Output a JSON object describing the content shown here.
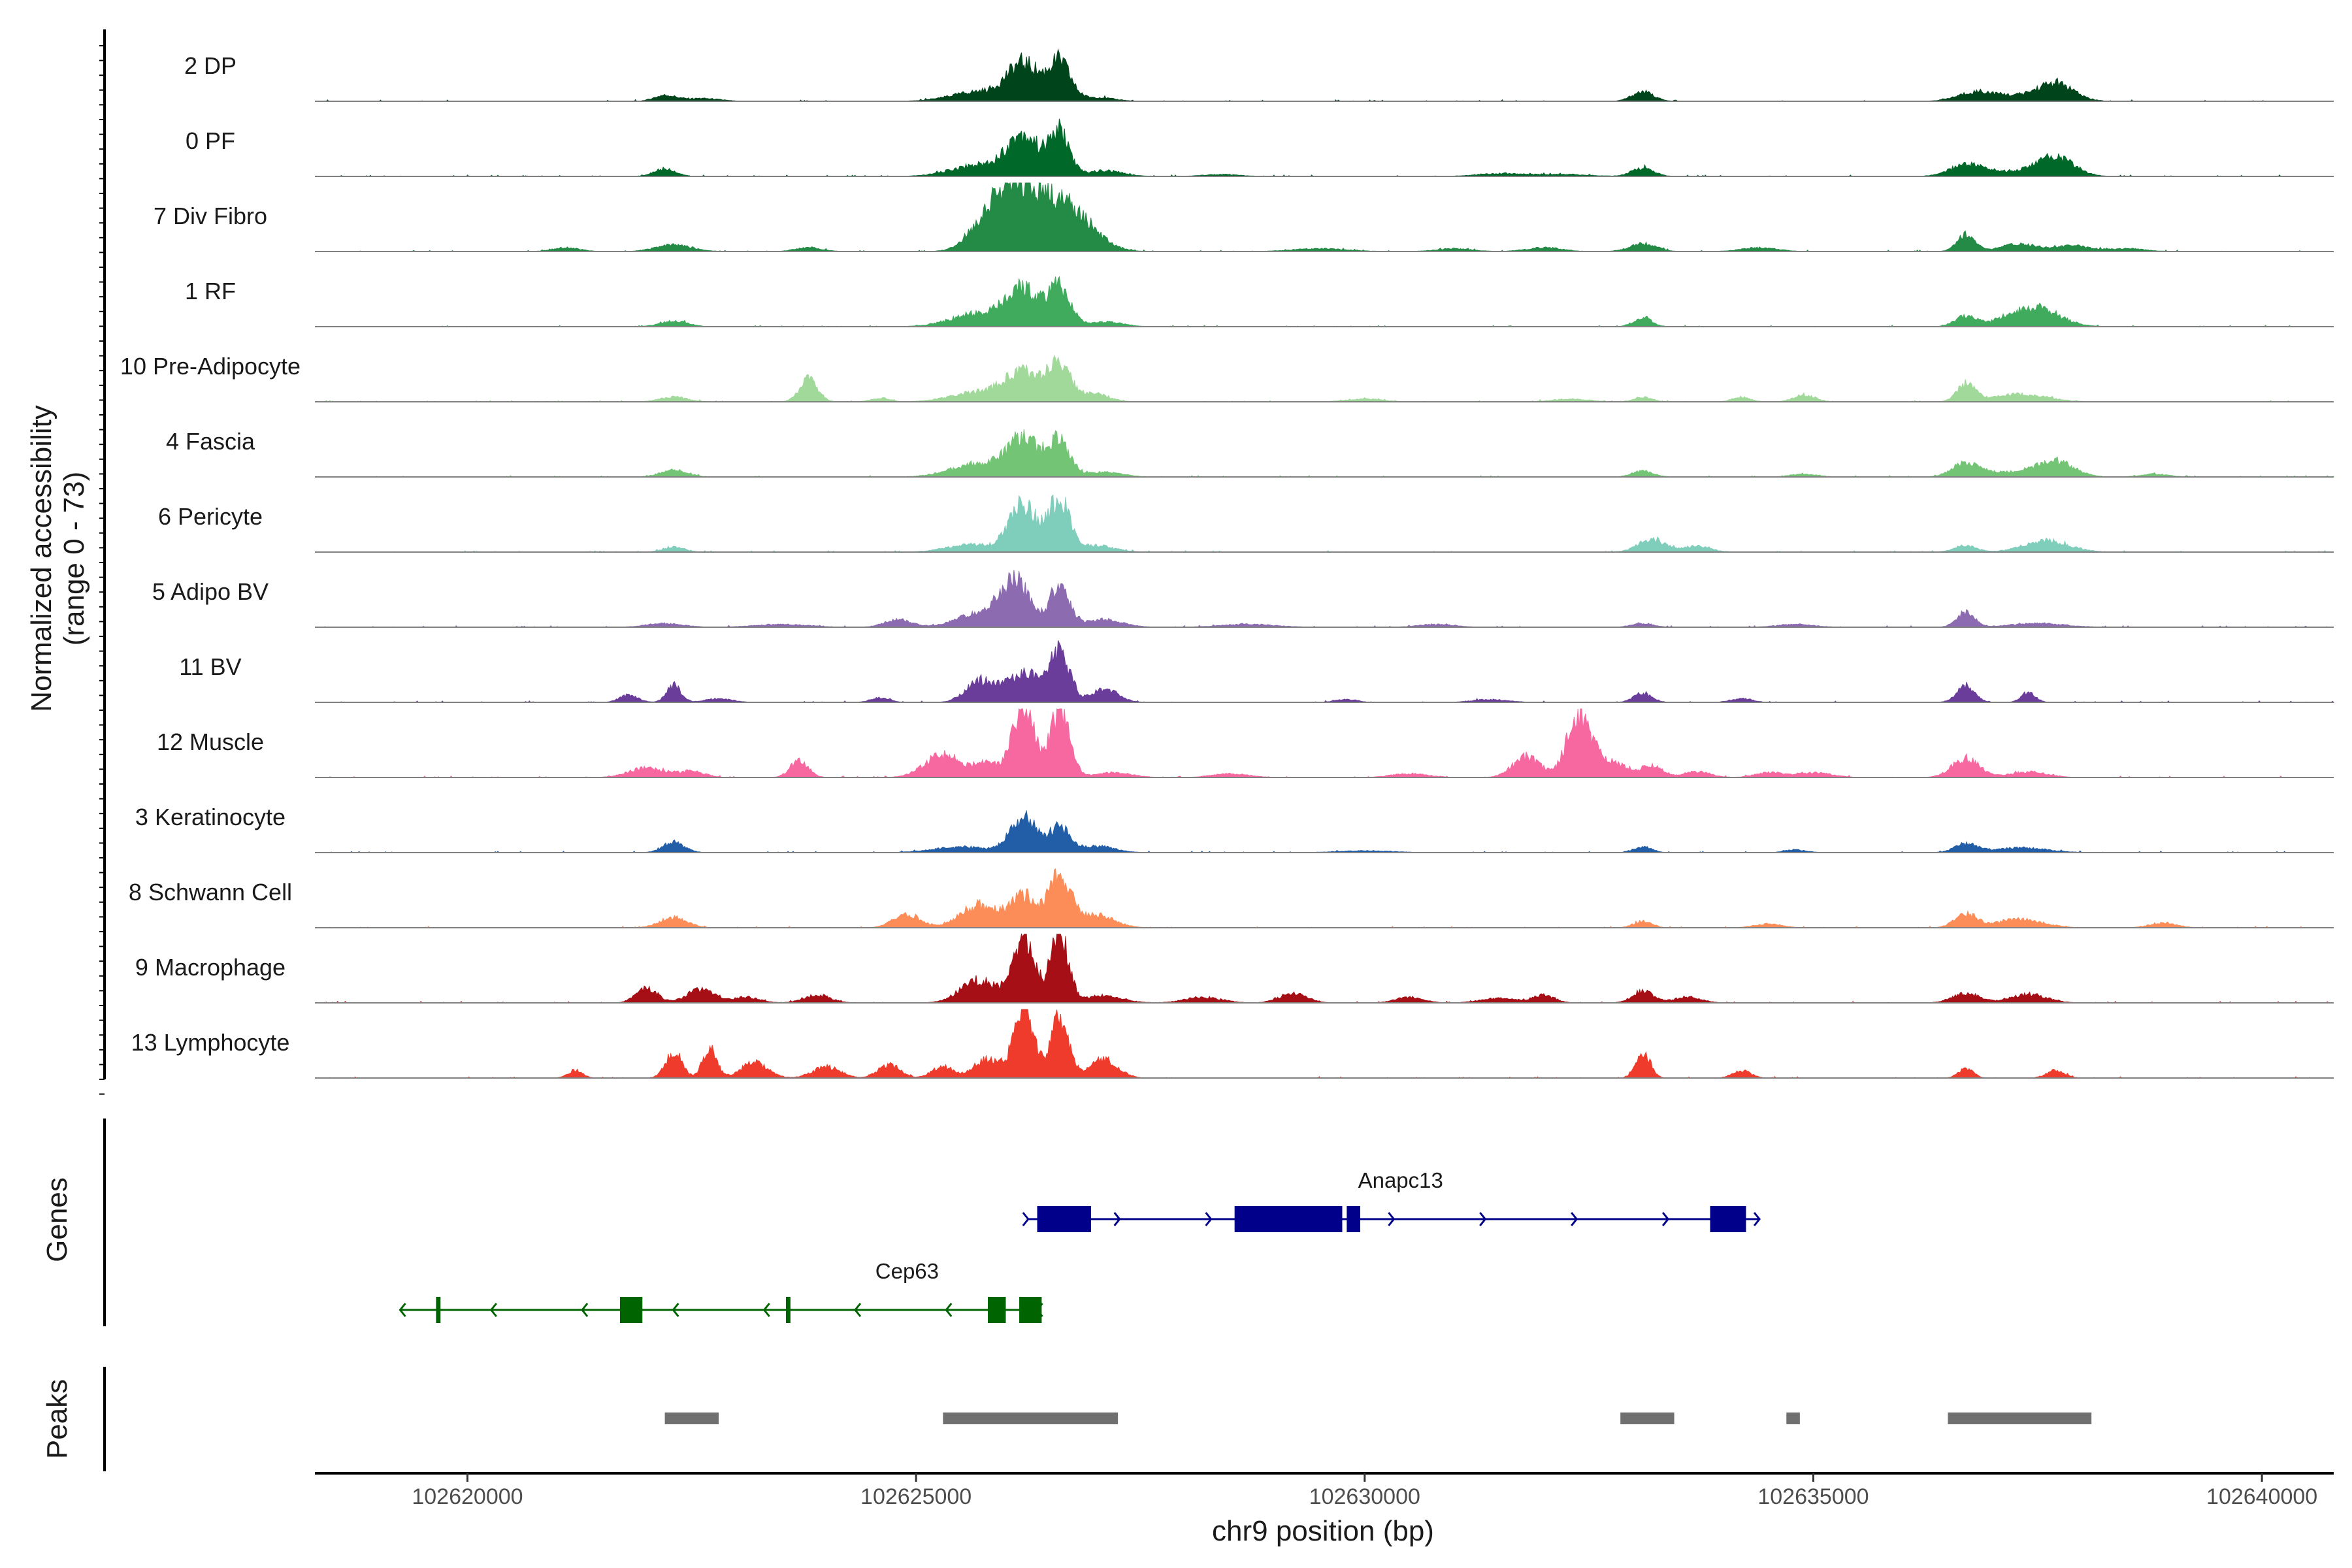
{
  "chart_data": {
    "type": "area",
    "title": "",
    "xlabel": "chr9 position (bp)",
    "ylabel": "Normalized accessibility",
    "ylabel_sub": "(range 0 - 73)",
    "xlim": [
      102618300,
      102640800
    ],
    "ylim": [
      0,
      73
    ],
    "x_ticks": [
      102620000,
      102625000,
      102630000,
      102635000,
      102640000
    ],
    "x_tick_labels": [
      "102620000",
      "102625000",
      "102630000",
      "102635000",
      "102640000"
    ],
    "series": [
      {
        "name": "2 DP",
        "color": "#00441b",
        "peaks": [
          [
            102622200,
            6,
            120
          ],
          [
            102622600,
            3,
            200
          ],
          [
            102626200,
            38,
            180
          ],
          [
            102626600,
            40,
            120
          ],
          [
            102625700,
            10,
            300
          ],
          [
            102627000,
            4,
            200
          ],
          [
            102633100,
            10,
            120
          ],
          [
            102636800,
            8,
            200
          ],
          [
            102637700,
            18,
            200
          ],
          [
            102637200,
            5,
            300
          ]
        ]
      },
      {
        "name": "0 PF",
        "color": "#00692a",
        "peaks": [
          [
            102622200,
            8,
            120
          ],
          [
            102626200,
            42,
            180
          ],
          [
            102626600,
            45,
            110
          ],
          [
            102625700,
            12,
            300
          ],
          [
            102627100,
            6,
            200
          ],
          [
            102628400,
            2,
            200
          ],
          [
            102631500,
            3,
            250
          ],
          [
            102633100,
            9,
            120
          ],
          [
            102636700,
            12,
            180
          ],
          [
            102637700,
            20,
            200
          ],
          [
            102637200,
            5,
            300
          ],
          [
            102632200,
            2,
            300
          ]
        ]
      },
      {
        "name": "7 Div Fibro",
        "color": "#238b45",
        "peaks": [
          [
            102622300,
            7,
            200
          ],
          [
            102621100,
            4,
            150
          ],
          [
            102623800,
            4,
            150
          ],
          [
            102626200,
            70,
            250
          ],
          [
            102625800,
            30,
            200
          ],
          [
            102626700,
            40,
            200
          ],
          [
            102627000,
            10,
            200
          ],
          [
            102629500,
            3,
            300
          ],
          [
            102631000,
            3,
            200
          ],
          [
            102632000,
            4,
            200
          ],
          [
            102633100,
            8,
            150
          ],
          [
            102634400,
            4,
            200
          ],
          [
            102636700,
            18,
            100
          ],
          [
            102637300,
            8,
            200
          ],
          [
            102637900,
            6,
            200
          ],
          [
            102638500,
            3,
            200
          ]
        ]
      },
      {
        "name": "1 RF",
        "color": "#41ab5d",
        "peaks": [
          [
            102622300,
            6,
            150
          ],
          [
            102625700,
            14,
            300
          ],
          [
            102626200,
            38,
            180
          ],
          [
            102626600,
            40,
            120
          ],
          [
            102627100,
            5,
            200
          ],
          [
            102633100,
            10,
            100
          ],
          [
            102636700,
            11,
            120
          ],
          [
            102637500,
            18,
            250
          ],
          [
            102637200,
            6,
            200
          ]
        ]
      },
      {
        "name": "10 Pre-Adipocyte",
        "color": "#a1d99b",
        "peaks": [
          [
            102622300,
            5,
            150
          ],
          [
            102623800,
            24,
            100
          ],
          [
            102624600,
            4,
            100
          ],
          [
            102625700,
            10,
            300
          ],
          [
            102626200,
            30,
            200
          ],
          [
            102626600,
            36,
            130
          ],
          [
            102627000,
            8,
            150
          ],
          [
            102630000,
            3,
            200
          ],
          [
            102632300,
            3,
            200
          ],
          [
            102633100,
            5,
            100
          ],
          [
            102634200,
            5,
            100
          ],
          [
            102634900,
            7,
            120
          ],
          [
            102636700,
            18,
            100
          ],
          [
            102637300,
            8,
            300
          ]
        ]
      },
      {
        "name": "4 Fascia",
        "color": "#74c476",
        "peaks": [
          [
            102622300,
            7,
            150
          ],
          [
            102625700,
            14,
            300
          ],
          [
            102626200,
            38,
            180
          ],
          [
            102626600,
            36,
            120
          ],
          [
            102627100,
            5,
            200
          ],
          [
            102633100,
            6,
            120
          ],
          [
            102634900,
            3,
            150
          ],
          [
            102636700,
            14,
            150
          ],
          [
            102637700,
            16,
            200
          ],
          [
            102637200,
            5,
            300
          ],
          [
            102638800,
            3,
            150
          ]
        ]
      },
      {
        "name": "6 Pericyte",
        "color": "#7fcdbb",
        "peaks": [
          [
            102622300,
            5,
            120
          ],
          [
            102625600,
            8,
            250
          ],
          [
            102626200,
            50,
            160
          ],
          [
            102626600,
            54,
            110
          ],
          [
            102627000,
            7,
            200
          ],
          [
            102633200,
            14,
            150
          ],
          [
            102633700,
            6,
            150
          ],
          [
            102636700,
            7,
            120
          ],
          [
            102637600,
            12,
            250
          ]
        ]
      },
      {
        "name": "5 Adipo BV",
        "color": "#8c6bb1",
        "peaks": [
          [
            102622200,
            4,
            200
          ],
          [
            102623500,
            3,
            300
          ],
          [
            102624800,
            8,
            150
          ],
          [
            102625700,
            14,
            250
          ],
          [
            102626100,
            48,
            160
          ],
          [
            102626600,
            44,
            110
          ],
          [
            102627100,
            8,
            200
          ],
          [
            102628700,
            3,
            300
          ],
          [
            102630800,
            3,
            200
          ],
          [
            102633100,
            4,
            120
          ],
          [
            102634800,
            3,
            200
          ],
          [
            102636700,
            16,
            100
          ],
          [
            102637500,
            4,
            300
          ]
        ]
      },
      {
        "name": "11 BV",
        "color": "#6a3d9a",
        "peaks": [
          [
            102621800,
            8,
            100
          ],
          [
            102622300,
            18,
            80
          ],
          [
            102622800,
            4,
            150
          ],
          [
            102624600,
            5,
            100
          ],
          [
            102625700,
            22,
            150
          ],
          [
            102626200,
            32,
            200
          ],
          [
            102626600,
            52,
            110
          ],
          [
            102627100,
            14,
            150
          ],
          [
            102629800,
            3,
            120
          ],
          [
            102631400,
            3,
            200
          ],
          [
            102633100,
            10,
            100
          ],
          [
            102634200,
            4,
            120
          ],
          [
            102636700,
            18,
            100
          ],
          [
            102637400,
            10,
            80
          ]
        ]
      },
      {
        "name": "12 Muscle",
        "color": "#f768a1",
        "peaks": [
          [
            102622000,
            10,
            200
          ],
          [
            102622500,
            6,
            150
          ],
          [
            102623700,
            18,
            100
          ],
          [
            102625300,
            24,
            200
          ],
          [
            102625800,
            14,
            150
          ],
          [
            102626200,
            75,
            120
          ],
          [
            102626600,
            70,
            110
          ],
          [
            102627200,
            5,
            200
          ],
          [
            102628500,
            4,
            200
          ],
          [
            102630500,
            4,
            200
          ],
          [
            102631800,
            22,
            150
          ],
          [
            102632400,
            68,
            140
          ],
          [
            102632800,
            14,
            150
          ],
          [
            102633200,
            12,
            120
          ],
          [
            102633700,
            6,
            150
          ],
          [
            102634500,
            5,
            150
          ],
          [
            102635000,
            5,
            200
          ],
          [
            102636700,
            20,
            150
          ],
          [
            102637400,
            6,
            200
          ]
        ]
      },
      {
        "name": "3 Keratinocyte",
        "color": "#225ea8",
        "peaks": [
          [
            102622300,
            11,
            120
          ],
          [
            102625500,
            6,
            300
          ],
          [
            102626200,
            36,
            150
          ],
          [
            102626600,
            26,
            110
          ],
          [
            102627000,
            7,
            200
          ],
          [
            102630000,
            2,
            300
          ],
          [
            102633100,
            6,
            100
          ],
          [
            102634800,
            3,
            120
          ],
          [
            102636700,
            9,
            120
          ],
          [
            102637300,
            5,
            300
          ]
        ]
      },
      {
        "name": "8 Schwann Cell",
        "color": "#fc8d59",
        "peaks": [
          [
            102622300,
            11,
            150
          ],
          [
            102624900,
            14,
            150
          ],
          [
            102625700,
            24,
            200
          ],
          [
            102626200,
            34,
            150
          ],
          [
            102626600,
            54,
            120
          ],
          [
            102627000,
            14,
            200
          ],
          [
            102633100,
            7,
            100
          ],
          [
            102634500,
            4,
            150
          ],
          [
            102636700,
            15,
            120
          ],
          [
            102637300,
            9,
            250
          ],
          [
            102638900,
            5,
            150
          ]
        ]
      },
      {
        "name": "9 Macrophage",
        "color": "#a50f15",
        "peaks": [
          [
            102622000,
            15,
            120
          ],
          [
            102622600,
            14,
            150
          ],
          [
            102623100,
            6,
            150
          ],
          [
            102623900,
            8,
            150
          ],
          [
            102625700,
            24,
            200
          ],
          [
            102626200,
            70,
            120
          ],
          [
            102626600,
            74,
            100
          ],
          [
            102627100,
            8,
            200
          ],
          [
            102628200,
            6,
            200
          ],
          [
            102629200,
            10,
            150
          ],
          [
            102630500,
            6,
            150
          ],
          [
            102631500,
            5,
            200
          ],
          [
            102632000,
            8,
            120
          ],
          [
            102633100,
            12,
            120
          ],
          [
            102633600,
            6,
            150
          ],
          [
            102636700,
            10,
            150
          ],
          [
            102637400,
            9,
            200
          ]
        ]
      },
      {
        "name": "13 Lymphocyte",
        "color": "#ef3b2c",
        "peaks": [
          [
            102621200,
            8,
            80
          ],
          [
            102622300,
            28,
            90
          ],
          [
            102622700,
            30,
            80
          ],
          [
            102623200,
            16,
            150
          ],
          [
            102624000,
            12,
            150
          ],
          [
            102624700,
            14,
            120
          ],
          [
            102625300,
            12,
            120
          ],
          [
            102625800,
            20,
            150
          ],
          [
            102626200,
            72,
            110
          ],
          [
            102626600,
            65,
            100
          ],
          [
            102627100,
            20,
            150
          ],
          [
            102633100,
            28,
            80
          ],
          [
            102634200,
            8,
            100
          ],
          [
            102636700,
            10,
            80
          ],
          [
            102637700,
            8,
            100
          ]
        ]
      }
    ],
    "genes": [
      {
        "name": "Anapc13",
        "strand": "+",
        "color": "#00008b",
        "row": 1,
        "start": 102626250,
        "end": 102634400,
        "exons": [
          [
            102626350,
            102626950,
            "utr"
          ],
          [
            102628550,
            102629750,
            "cds"
          ],
          [
            102629800,
            102629950,
            "cds"
          ],
          [
            102633850,
            102634250,
            "utr"
          ]
        ]
      },
      {
        "name": "Cep63",
        "strand": "-",
        "color": "#006400",
        "row": 2,
        "start": 102619250,
        "end": 102626350,
        "exons": [
          [
            102619650,
            102619700,
            "cds"
          ],
          [
            102621700,
            102621950,
            "cds"
          ],
          [
            102623550,
            102623600,
            "cds"
          ],
          [
            102625800,
            102626000,
            "cds"
          ],
          [
            102626150,
            102626400,
            "cds"
          ]
        ]
      }
    ],
    "peak_regions": [
      [
        102622200,
        102622800
      ],
      [
        102625300,
        102627250
      ],
      [
        102632850,
        102633450
      ],
      [
        102634700,
        102634850
      ],
      [
        102636500,
        102638100
      ]
    ],
    "track_titles": {
      "genes": "Genes",
      "peaks": "Peaks"
    }
  }
}
